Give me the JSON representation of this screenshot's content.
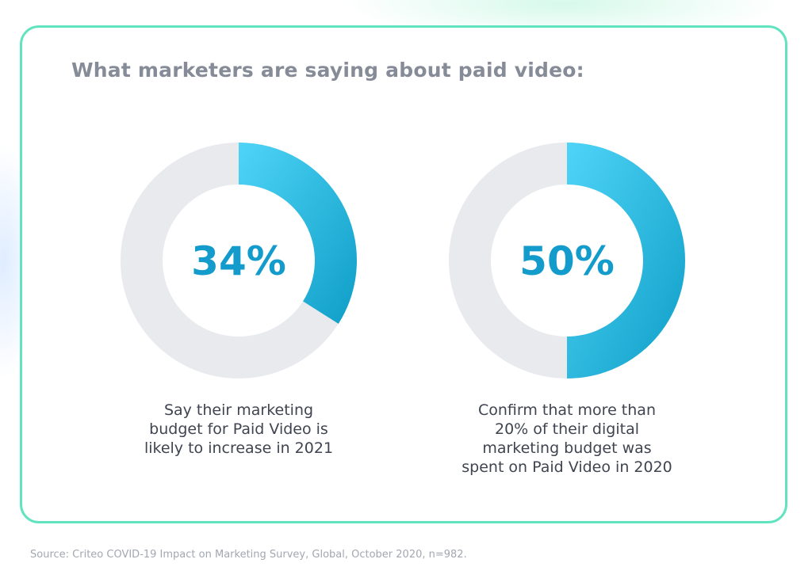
{
  "headline": "What marketers are saying about paid video:",
  "source": "Source: Criteo COVID-19 Impact on Marketing Survey, Global, October 2020, n=982.",
  "colors": {
    "border": "#62e3c0",
    "track": "#e9eaee",
    "arc_start": "#4fd4f7",
    "arc_end": "#0f9ec7",
    "value_text": "#139ccb",
    "headline": "#868b98"
  },
  "chart_data": [
    {
      "type": "pie",
      "variant": "donut",
      "value_percent": 34,
      "value_label": "34%",
      "caption_lines": [
        "Say their marketing",
        "budget for Paid Video is",
        "likely to increase in 2021"
      ]
    },
    {
      "type": "pie",
      "variant": "donut",
      "value_percent": 50,
      "value_label": "50%",
      "caption_lines": [
        "Confirm that more than",
        "20% of their digital",
        "marketing budget was",
        "spent on Paid Video in 2020"
      ]
    }
  ]
}
